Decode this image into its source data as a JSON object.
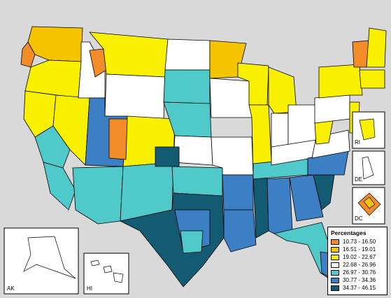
{
  "map": {
    "legend": {
      "title": "Percentages",
      "classes": [
        {
          "label": "10.73 - 16.50",
          "color": "#f28c28"
        },
        {
          "label": "16.51 - 19.01",
          "color": "#f5c400"
        },
        {
          "label": "19.02 - 22.67",
          "color": "#f9f000"
        },
        {
          "label": "22.68 - 26.96",
          "color": "#ffffff"
        },
        {
          "label": "26.97 - 30.76",
          "color": "#4fc9c9"
        },
        {
          "label": "30.77 - 34.36",
          "color": "#3d7fc4"
        },
        {
          "label": "34.37 - 46.15",
          "color": "#135a73"
        }
      ]
    },
    "insets": {
      "ak": "AK",
      "hi": "HI",
      "ri": "RI",
      "de": "DE",
      "dc": "DC"
    },
    "colors": {
      "background": "#d9d9d9",
      "border": "#000000"
    }
  }
}
